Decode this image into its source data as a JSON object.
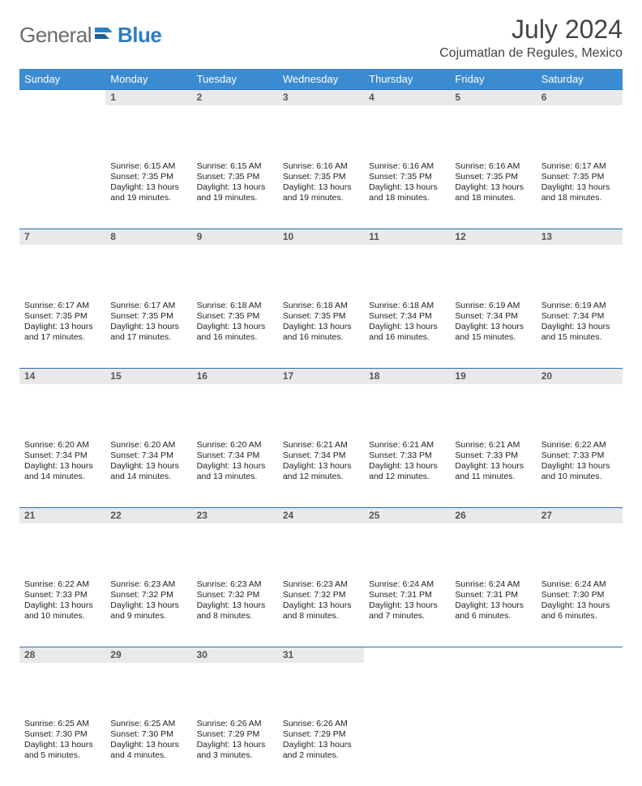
{
  "brand": {
    "part1": "General",
    "part2": "Blue"
  },
  "title": "July 2024",
  "subtitle": "Cojumatlan de Regules, Mexico",
  "colors": {
    "header_bg": "#3b8bd0",
    "header_text": "#ffffff",
    "daynum_bg": "#e9e9e9",
    "daynum_text": "#555555",
    "rule": "#2b6fb0",
    "body_text": "#222222",
    "brand_gray": "#6b6b6b",
    "brand_blue": "#2b7fc3"
  },
  "weekdays": [
    "Sunday",
    "Monday",
    "Tuesday",
    "Wednesday",
    "Thursday",
    "Friday",
    "Saturday"
  ],
  "grid": [
    [
      null,
      {
        "n": "1",
        "sunrise": "6:15 AM",
        "sunset": "7:35 PM",
        "daylight": "13 hours and 19 minutes."
      },
      {
        "n": "2",
        "sunrise": "6:15 AM",
        "sunset": "7:35 PM",
        "daylight": "13 hours and 19 minutes."
      },
      {
        "n": "3",
        "sunrise": "6:16 AM",
        "sunset": "7:35 PM",
        "daylight": "13 hours and 19 minutes."
      },
      {
        "n": "4",
        "sunrise": "6:16 AM",
        "sunset": "7:35 PM",
        "daylight": "13 hours and 18 minutes."
      },
      {
        "n": "5",
        "sunrise": "6:16 AM",
        "sunset": "7:35 PM",
        "daylight": "13 hours and 18 minutes."
      },
      {
        "n": "6",
        "sunrise": "6:17 AM",
        "sunset": "7:35 PM",
        "daylight": "13 hours and 18 minutes."
      }
    ],
    [
      {
        "n": "7",
        "sunrise": "6:17 AM",
        "sunset": "7:35 PM",
        "daylight": "13 hours and 17 minutes."
      },
      {
        "n": "8",
        "sunrise": "6:17 AM",
        "sunset": "7:35 PM",
        "daylight": "13 hours and 17 minutes."
      },
      {
        "n": "9",
        "sunrise": "6:18 AM",
        "sunset": "7:35 PM",
        "daylight": "13 hours and 16 minutes."
      },
      {
        "n": "10",
        "sunrise": "6:18 AM",
        "sunset": "7:35 PM",
        "daylight": "13 hours and 16 minutes."
      },
      {
        "n": "11",
        "sunrise": "6:18 AM",
        "sunset": "7:34 PM",
        "daylight": "13 hours and 16 minutes."
      },
      {
        "n": "12",
        "sunrise": "6:19 AM",
        "sunset": "7:34 PM",
        "daylight": "13 hours and 15 minutes."
      },
      {
        "n": "13",
        "sunrise": "6:19 AM",
        "sunset": "7:34 PM",
        "daylight": "13 hours and 15 minutes."
      }
    ],
    [
      {
        "n": "14",
        "sunrise": "6:20 AM",
        "sunset": "7:34 PM",
        "daylight": "13 hours and 14 minutes."
      },
      {
        "n": "15",
        "sunrise": "6:20 AM",
        "sunset": "7:34 PM",
        "daylight": "13 hours and 14 minutes."
      },
      {
        "n": "16",
        "sunrise": "6:20 AM",
        "sunset": "7:34 PM",
        "daylight": "13 hours and 13 minutes."
      },
      {
        "n": "17",
        "sunrise": "6:21 AM",
        "sunset": "7:34 PM",
        "daylight": "13 hours and 12 minutes."
      },
      {
        "n": "18",
        "sunrise": "6:21 AM",
        "sunset": "7:33 PM",
        "daylight": "13 hours and 12 minutes."
      },
      {
        "n": "19",
        "sunrise": "6:21 AM",
        "sunset": "7:33 PM",
        "daylight": "13 hours and 11 minutes."
      },
      {
        "n": "20",
        "sunrise": "6:22 AM",
        "sunset": "7:33 PM",
        "daylight": "13 hours and 10 minutes."
      }
    ],
    [
      {
        "n": "21",
        "sunrise": "6:22 AM",
        "sunset": "7:33 PM",
        "daylight": "13 hours and 10 minutes."
      },
      {
        "n": "22",
        "sunrise": "6:23 AM",
        "sunset": "7:32 PM",
        "daylight": "13 hours and 9 minutes."
      },
      {
        "n": "23",
        "sunrise": "6:23 AM",
        "sunset": "7:32 PM",
        "daylight": "13 hours and 8 minutes."
      },
      {
        "n": "24",
        "sunrise": "6:23 AM",
        "sunset": "7:32 PM",
        "daylight": "13 hours and 8 minutes."
      },
      {
        "n": "25",
        "sunrise": "6:24 AM",
        "sunset": "7:31 PM",
        "daylight": "13 hours and 7 minutes."
      },
      {
        "n": "26",
        "sunrise": "6:24 AM",
        "sunset": "7:31 PM",
        "daylight": "13 hours and 6 minutes."
      },
      {
        "n": "27",
        "sunrise": "6:24 AM",
        "sunset": "7:30 PM",
        "daylight": "13 hours and 6 minutes."
      }
    ],
    [
      {
        "n": "28",
        "sunrise": "6:25 AM",
        "sunset": "7:30 PM",
        "daylight": "13 hours and 5 minutes."
      },
      {
        "n": "29",
        "sunrise": "6:25 AM",
        "sunset": "7:30 PM",
        "daylight": "13 hours and 4 minutes."
      },
      {
        "n": "30",
        "sunrise": "6:26 AM",
        "sunset": "7:29 PM",
        "daylight": "13 hours and 3 minutes."
      },
      {
        "n": "31",
        "sunrise": "6:26 AM",
        "sunset": "7:29 PM",
        "daylight": "13 hours and 2 minutes."
      },
      null,
      null,
      null
    ]
  ],
  "labels": {
    "sunrise_prefix": "Sunrise: ",
    "sunset_prefix": "Sunset: ",
    "daylight_prefix": "Daylight: "
  }
}
